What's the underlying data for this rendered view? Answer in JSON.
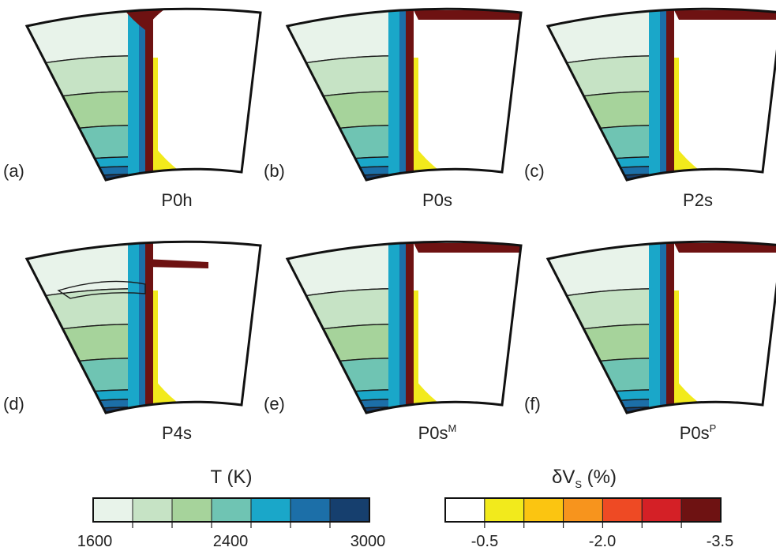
{
  "panels": [
    {
      "id": "a",
      "letter": "(a)",
      "name": "P0h",
      "sup": ""
    },
    {
      "id": "b",
      "letter": "(b)",
      "name": "P0s",
      "sup": ""
    },
    {
      "id": "c",
      "letter": "(c)",
      "name": "P2s",
      "sup": ""
    },
    {
      "id": "d",
      "letter": "(d)",
      "name": "P4s",
      "sup": ""
    },
    {
      "id": "e",
      "letter": "(e)",
      "name": "P0s",
      "sup": "M"
    },
    {
      "id": "f",
      "letter": "(f)",
      "name": "P0s",
      "sup": "P"
    }
  ],
  "temperature_bar": {
    "title": "T (K)",
    "ticks": [
      "1600",
      "2400",
      "3000"
    ],
    "colors": [
      "#e8f3ea",
      "#c6e3c5",
      "#a6d39b",
      "#6fc4b3",
      "#1aa7c9",
      "#1c6fa8",
      "#163f6e"
    ]
  },
  "velocity_bar": {
    "title_prefix": "δV",
    "title_sub": "S",
    "title_suffix": " (%)",
    "ticks": [
      "-0.5",
      "-2.0",
      "-3.5"
    ],
    "colors": [
      "#ffffff",
      "#f2ea1c",
      "#fbc511",
      "#f7941d",
      "#ee4a24",
      "#d42026",
      "#6e1212"
    ]
  }
}
